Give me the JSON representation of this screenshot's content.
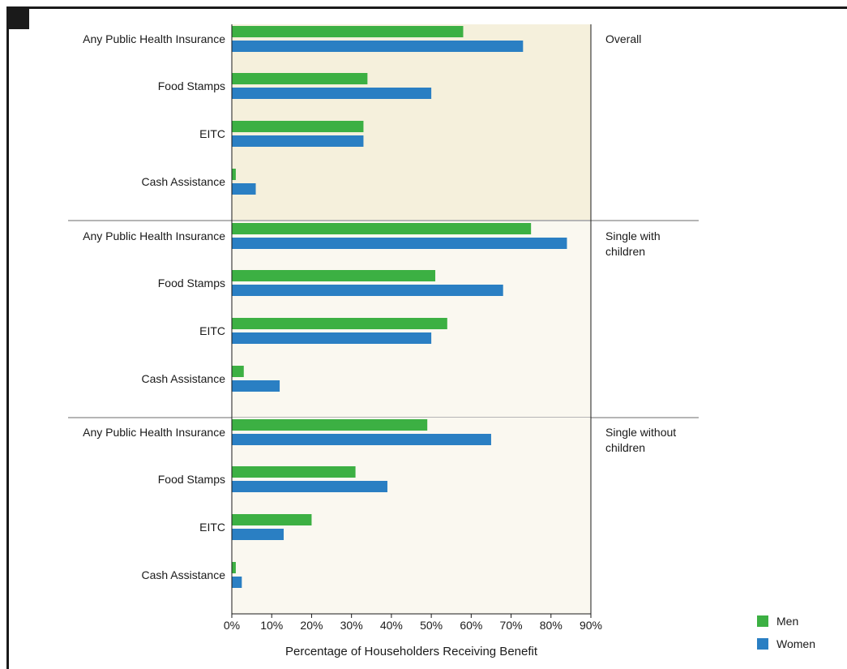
{
  "chart_data": {
    "type": "bar",
    "orientation": "horizontal",
    "xlabel": "Percentage of Householders Receiving Benefit",
    "xlim": [
      0,
      90
    ],
    "xticks": [
      "0%",
      "10%",
      "20%",
      "30%",
      "40%",
      "50%",
      "60%",
      "70%",
      "80%",
      "90%"
    ],
    "categories": [
      "Any Public Health Insurance",
      "Food Stamps",
      "EITC",
      "Cash Assistance"
    ],
    "legend": [
      {
        "name": "Men",
        "color": "#3cb043"
      },
      {
        "name": "Women",
        "color": "#2a7fc3"
      }
    ],
    "panels": [
      {
        "label_lines": [
          "Overall"
        ],
        "background": "#f5f0dc",
        "series": [
          {
            "name": "Men",
            "values": [
              58,
              34,
              33,
              1
            ]
          },
          {
            "name": "Women",
            "values": [
              73,
              50,
              33,
              6
            ]
          }
        ]
      },
      {
        "label_lines": [
          "Single with",
          "children"
        ],
        "background": "#faf8f0",
        "series": [
          {
            "name": "Men",
            "values": [
              75,
              51,
              54,
              3
            ]
          },
          {
            "name": "Women",
            "values": [
              84,
              68,
              50,
              12
            ]
          }
        ]
      },
      {
        "label_lines": [
          "Single without",
          "children"
        ],
        "background": "#faf8f0",
        "series": [
          {
            "name": "Men",
            "values": [
              49,
              31,
              20,
              1
            ]
          },
          {
            "name": "Women",
            "values": [
              65,
              39,
              13,
              2.5
            ]
          }
        ]
      }
    ]
  }
}
